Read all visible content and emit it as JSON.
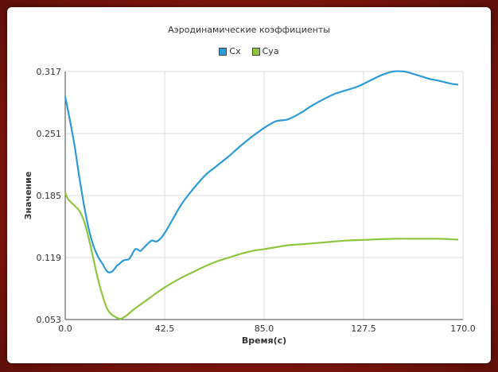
{
  "chart_data": {
    "type": "line",
    "title": "Аэродинамические коэффициенты",
    "xlabel": "Время(с)",
    "ylabel": "Значение",
    "xlim": [
      0,
      170
    ],
    "ylim": [
      0.053,
      0.317
    ],
    "x_ticks": [
      "0.0",
      "42.5",
      "85.0",
      "127.5",
      "170.0"
    ],
    "y_ticks": [
      "0.053",
      "0.119",
      "0.185",
      "0.251",
      "0.317"
    ],
    "grid": true,
    "legend_position": "top-center",
    "series": [
      {
        "name": "Cx",
        "color": "#2e9bd6",
        "x": [
          0,
          1,
          2,
          4,
          6,
          8,
          10,
          12,
          14,
          16,
          18,
          20,
          22,
          23,
          25,
          27,
          28,
          30,
          32,
          33,
          35,
          37,
          39,
          41,
          43,
          46,
          50,
          55,
          60,
          65,
          70,
          75,
          80,
          85,
          90,
          95,
          100,
          105,
          110,
          115,
          120,
          125,
          130,
          135,
          140,
          145,
          148,
          152,
          156,
          160,
          165,
          168
        ],
        "values": [
          0.29,
          0.278,
          0.265,
          0.238,
          0.205,
          0.175,
          0.15,
          0.132,
          0.12,
          0.112,
          0.104,
          0.104,
          0.11,
          0.112,
          0.116,
          0.117,
          0.12,
          0.128,
          0.126,
          0.128,
          0.133,
          0.137,
          0.136,
          0.14,
          0.147,
          0.16,
          0.177,
          0.193,
          0.207,
          0.217,
          0.227,
          0.238,
          0.248,
          0.257,
          0.264,
          0.266,
          0.272,
          0.28,
          0.287,
          0.293,
          0.297,
          0.301,
          0.307,
          0.313,
          0.317,
          0.317,
          0.315,
          0.312,
          0.309,
          0.307,
          0.304,
          0.303
        ]
      },
      {
        "name": "Cya",
        "color": "#8ec63f",
        "x": [
          0,
          1,
          2,
          4,
          6,
          8,
          10,
          12,
          14,
          16,
          18,
          20,
          22,
          23,
          24,
          26,
          30,
          35,
          40,
          45,
          50,
          55,
          60,
          65,
          70,
          75,
          80,
          85,
          90,
          95,
          100,
          110,
          120,
          130,
          140,
          150,
          160,
          168
        ],
        "values": [
          0.188,
          0.182,
          0.179,
          0.174,
          0.169,
          0.158,
          0.14,
          0.118,
          0.096,
          0.078,
          0.064,
          0.058,
          0.055,
          0.054,
          0.054,
          0.057,
          0.065,
          0.074,
          0.083,
          0.091,
          0.098,
          0.104,
          0.11,
          0.115,
          0.119,
          0.123,
          0.126,
          0.128,
          0.13,
          0.132,
          0.133,
          0.135,
          0.137,
          0.138,
          0.139,
          0.139,
          0.139,
          0.138
        ]
      }
    ]
  }
}
